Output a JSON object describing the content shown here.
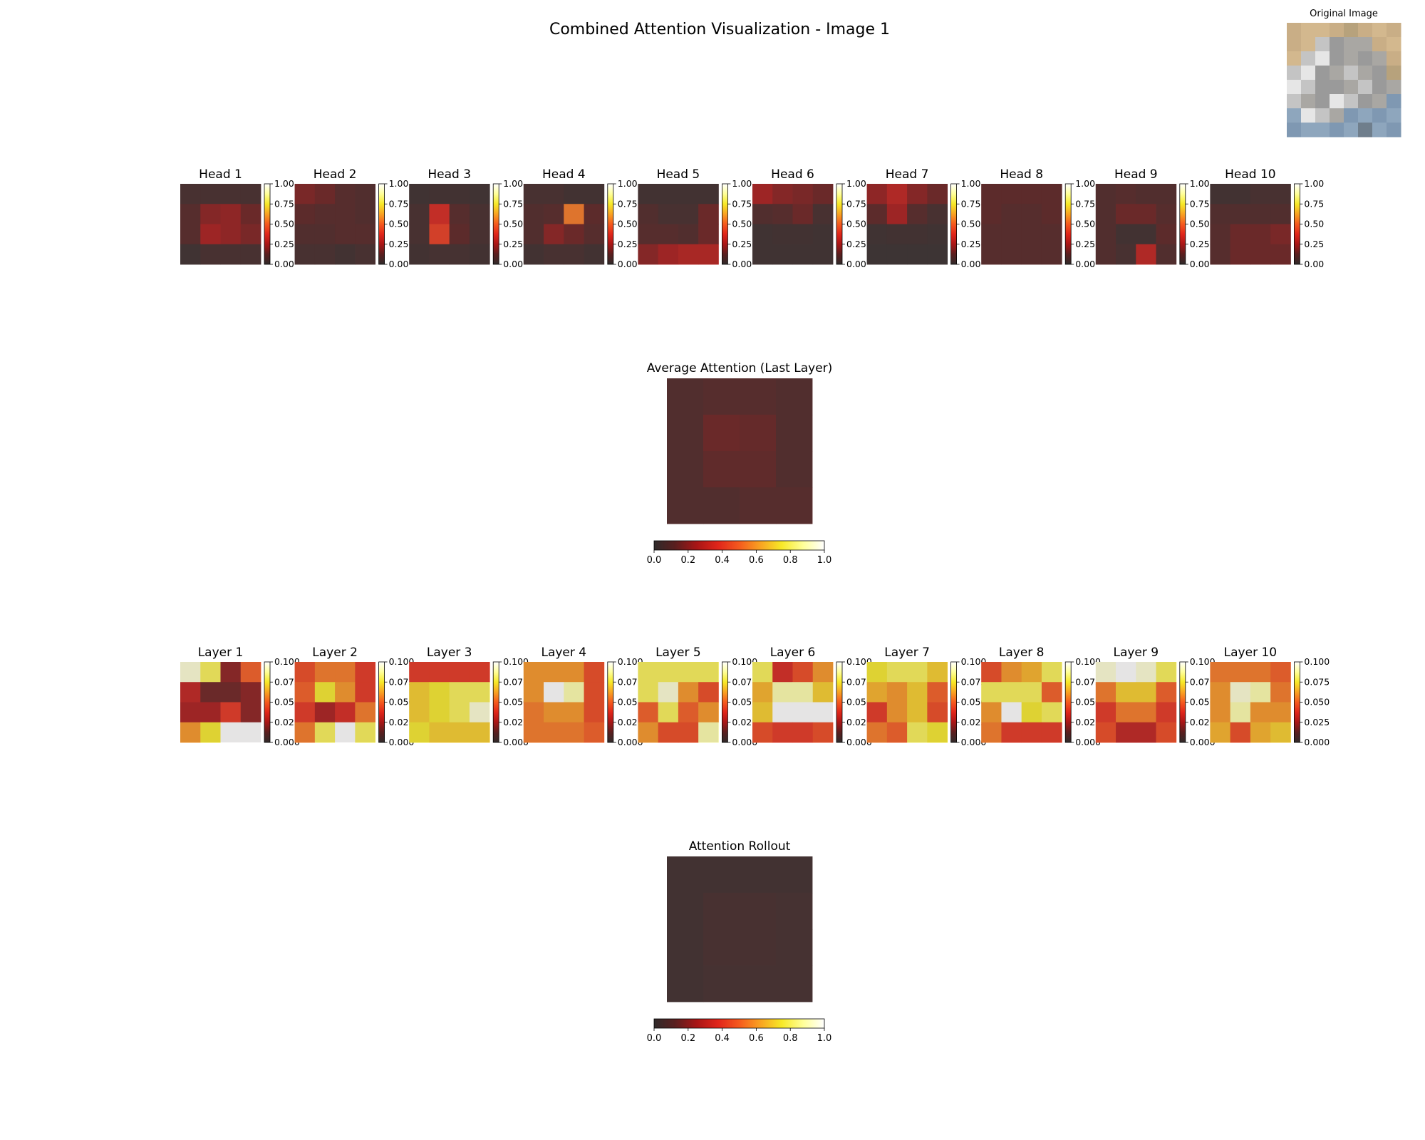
{
  "figure_title": "Combined Attention Visualization - Image 1",
  "original_image": {
    "title": "Original Image",
    "palette": [
      "#c9ae86",
      "#d3b88e",
      "#a9a7a3",
      "#9a9a9a",
      "#c4c4c4",
      "#e6e6e6",
      "#8ea6bd",
      "#7f98b2",
      "#b7a27c",
      "#6f7e8c"
    ]
  },
  "colormap": [
    "#2f2a2a",
    "#5a1e1e",
    "#a81616",
    "#e0251a",
    "#f55a1e",
    "#f9a322",
    "#f7e928",
    "#ffff99",
    "#ffffff"
  ],
  "chart_data": [
    {
      "type": "heatmap",
      "group": "heads",
      "panels": [
        {
          "title": "Head 1",
          "grid": [
            [
              0.05,
              0.05,
              0.05,
              0.05
            ],
            [
              0.1,
              0.2,
              0.22,
              0.15
            ],
            [
              0.1,
              0.25,
              0.22,
              0.18
            ],
            [
              0.02,
              0.05,
              0.05,
              0.05
            ]
          ]
        },
        {
          "title": "Head 2",
          "grid": [
            [
              0.18,
              0.15,
              0.1,
              0.08
            ],
            [
              0.12,
              0.1,
              0.1,
              0.08
            ],
            [
              0.08,
              0.08,
              0.1,
              0.1
            ],
            [
              0.05,
              0.05,
              0.03,
              0.05
            ]
          ]
        },
        {
          "title": "Head 3",
          "grid": [
            [
              0.02,
              0.03,
              0.03,
              0.02
            ],
            [
              0.05,
              0.35,
              0.1,
              0.05
            ],
            [
              0.05,
              0.42,
              0.12,
              0.05
            ],
            [
              0.03,
              0.04,
              0.04,
              0.03
            ]
          ]
        },
        {
          "title": "Head 4",
          "grid": [
            [
              0.05,
              0.05,
              0.03,
              0.03
            ],
            [
              0.08,
              0.1,
              0.55,
              0.12
            ],
            [
              0.08,
              0.2,
              0.15,
              0.1
            ],
            [
              0.03,
              0.05,
              0.05,
              0.03
            ]
          ]
        },
        {
          "title": "Head 5",
          "grid": [
            [
              0.03,
              0.03,
              0.03,
              0.03
            ],
            [
              0.08,
              0.05,
              0.05,
              0.15
            ],
            [
              0.1,
              0.1,
              0.08,
              0.15
            ],
            [
              0.2,
              0.25,
              0.28,
              0.28
            ]
          ]
        },
        {
          "title": "Head 6",
          "grid": [
            [
              0.25,
              0.2,
              0.18,
              0.15
            ],
            [
              0.08,
              0.1,
              0.15,
              0.05
            ],
            [
              0.02,
              0.03,
              0.03,
              0.02
            ],
            [
              0.02,
              0.02,
              0.02,
              0.02
            ]
          ]
        },
        {
          "title": "Head 7",
          "grid": [
            [
              0.22,
              0.3,
              0.2,
              0.15
            ],
            [
              0.12,
              0.25,
              0.1,
              0.05
            ],
            [
              0.02,
              0.03,
              0.03,
              0.02
            ],
            [
              0.01,
              0.01,
              0.01,
              0.01
            ]
          ]
        },
        {
          "title": "Head 8",
          "grid": [
            [
              0.12,
              0.12,
              0.12,
              0.12
            ],
            [
              0.12,
              0.1,
              0.1,
              0.12
            ],
            [
              0.1,
              0.1,
              0.1,
              0.1
            ],
            [
              0.1,
              0.1,
              0.1,
              0.1
            ]
          ]
        },
        {
          "title": "Head 9",
          "grid": [
            [
              0.08,
              0.1,
              0.08,
              0.08
            ],
            [
              0.08,
              0.15,
              0.15,
              0.1
            ],
            [
              0.08,
              0.03,
              0.03,
              0.12
            ],
            [
              0.08,
              0.05,
              0.3,
              0.08
            ]
          ]
        },
        {
          "title": "Head 10",
          "grid": [
            [
              0.03,
              0.03,
              0.05,
              0.05
            ],
            [
              0.08,
              0.08,
              0.08,
              0.08
            ],
            [
              0.1,
              0.15,
              0.15,
              0.18
            ],
            [
              0.1,
              0.15,
              0.15,
              0.15
            ]
          ]
        }
      ],
      "colorbar_ticks": [
        "0.00",
        "0.25",
        "0.50",
        "0.75",
        "1.00"
      ],
      "vmax": 1.0
    },
    {
      "type": "heatmap",
      "group": "average",
      "title": "Average Attention (Last Layer)",
      "grid": [
        [
          0.08,
          0.1,
          0.1,
          0.08
        ],
        [
          0.08,
          0.15,
          0.14,
          0.08
        ],
        [
          0.08,
          0.13,
          0.13,
          0.08
        ],
        [
          0.08,
          0.08,
          0.1,
          0.1
        ]
      ],
      "colorbar_ticks": [
        "0.0",
        "0.2",
        "0.4",
        "0.6",
        "0.8",
        "1.0"
      ],
      "vmax": 1.0
    },
    {
      "type": "heatmap",
      "group": "layers",
      "panels": [
        {
          "title": "Layer 1",
          "grid": [
            [
              0.095,
              0.08,
              0.02,
              0.05
            ],
            [
              0.03,
              0.015,
              0.015,
              0.02
            ],
            [
              0.025,
              0.025,
              0.04,
              0.02
            ],
            [
              0.06,
              0.075,
              0.1,
              0.1
            ]
          ]
        },
        {
          "title": "Layer 2",
          "grid": [
            [
              0.045,
              0.055,
              0.055,
              0.04
            ],
            [
              0.05,
              0.075,
              0.06,
              0.04
            ],
            [
              0.04,
              0.025,
              0.035,
              0.055
            ],
            [
              0.055,
              0.08,
              0.1,
              0.08
            ]
          ]
        },
        {
          "title": "Layer 3",
          "grid": [
            [
              0.04,
              0.04,
              0.04,
              0.04
            ],
            [
              0.07,
              0.075,
              0.08,
              0.08
            ],
            [
              0.07,
              0.075,
              0.08,
              0.095
            ],
            [
              0.075,
              0.07,
              0.07,
              0.07
            ]
          ]
        },
        {
          "title": "Layer 4",
          "grid": [
            [
              0.06,
              0.06,
              0.06,
              0.045
            ],
            [
              0.06,
              0.1,
              0.09,
              0.045
            ],
            [
              0.055,
              0.06,
              0.06,
              0.045
            ],
            [
              0.055,
              0.055,
              0.055,
              0.05
            ]
          ]
        },
        {
          "title": "Layer 5",
          "grid": [
            [
              0.08,
              0.08,
              0.08,
              0.08
            ],
            [
              0.08,
              0.095,
              0.06,
              0.045
            ],
            [
              0.05,
              0.08,
              0.05,
              0.06
            ],
            [
              0.06,
              0.045,
              0.045,
              0.09
            ]
          ]
        },
        {
          "title": "Layer 6",
          "grid": [
            [
              0.08,
              0.035,
              0.045,
              0.06
            ],
            [
              0.065,
              0.09,
              0.09,
              0.07
            ],
            [
              0.07,
              0.1,
              0.1,
              0.1
            ],
            [
              0.045,
              0.04,
              0.04,
              0.045
            ]
          ]
        },
        {
          "title": "Layer 7",
          "grid": [
            [
              0.075,
              0.08,
              0.08,
              0.07
            ],
            [
              0.065,
              0.06,
              0.07,
              0.05
            ],
            [
              0.04,
              0.06,
              0.07,
              0.045
            ],
            [
              0.055,
              0.05,
              0.08,
              0.075
            ]
          ]
        },
        {
          "title": "Layer 8",
          "grid": [
            [
              0.045,
              0.06,
              0.065,
              0.08
            ],
            [
              0.08,
              0.08,
              0.08,
              0.05
            ],
            [
              0.06,
              0.1,
              0.075,
              0.08
            ],
            [
              0.055,
              0.04,
              0.04,
              0.04
            ]
          ]
        },
        {
          "title": "Layer 9",
          "grid": [
            [
              0.095,
              0.1,
              0.095,
              0.08
            ],
            [
              0.055,
              0.07,
              0.07,
              0.05
            ],
            [
              0.04,
              0.055,
              0.055,
              0.04
            ],
            [
              0.045,
              0.03,
              0.03,
              0.045
            ]
          ]
        },
        {
          "title": "Layer 10",
          "grid": [
            [
              0.055,
              0.055,
              0.055,
              0.05
            ],
            [
              0.06,
              0.095,
              0.09,
              0.055
            ],
            [
              0.06,
              0.09,
              0.06,
              0.06
            ],
            [
              0.065,
              0.045,
              0.065,
              0.07
            ]
          ]
        }
      ],
      "colorbar_ticks": [
        "0.000",
        "0.025",
        "0.050",
        "0.075",
        "0.100"
      ],
      "vmax": 0.1
    },
    {
      "type": "heatmap",
      "group": "rollout",
      "title": "Attention Rollout",
      "grid": [
        [
          0.03,
          0.03,
          0.03,
          0.03
        ],
        [
          0.03,
          0.05,
          0.05,
          0.04
        ],
        [
          0.03,
          0.05,
          0.05,
          0.04
        ],
        [
          0.03,
          0.04,
          0.04,
          0.04
        ]
      ],
      "colorbar_ticks": [
        "0.0",
        "0.2",
        "0.4",
        "0.6",
        "0.8",
        "1.0"
      ],
      "vmax": 1.0
    }
  ]
}
